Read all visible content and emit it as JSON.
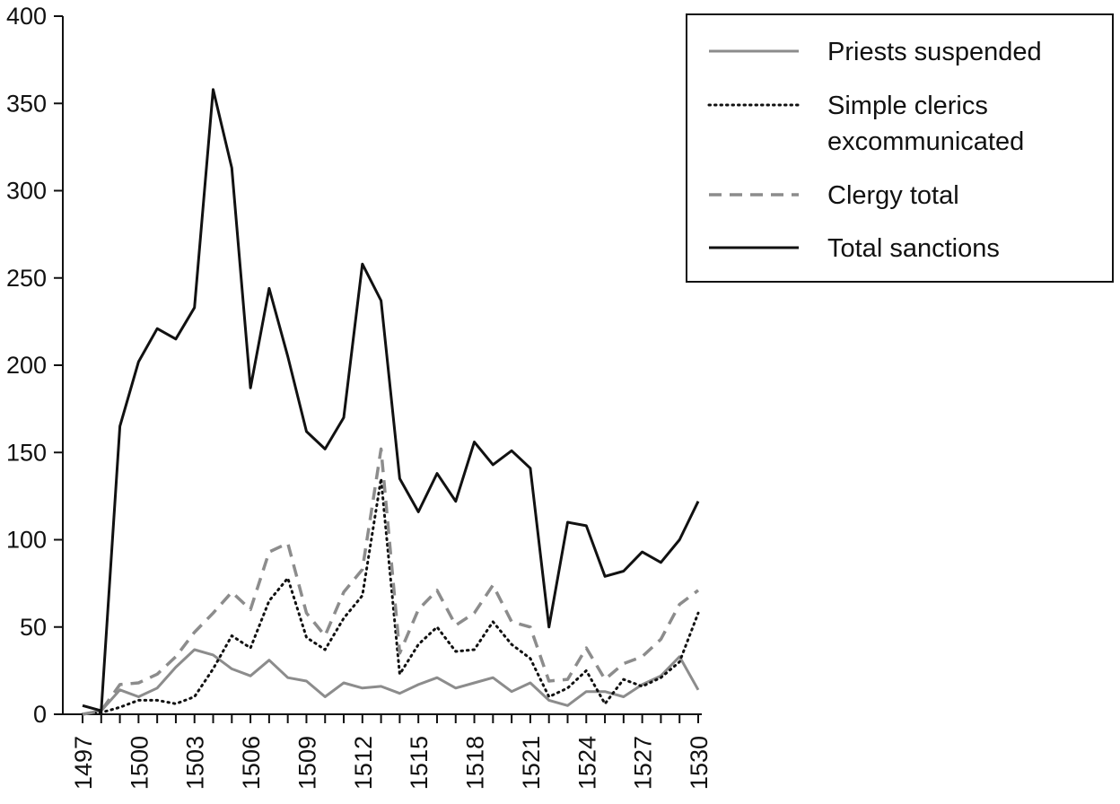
{
  "chart_data": {
    "type": "line",
    "x": [
      1497,
      1498,
      1499,
      1500,
      1501,
      1502,
      1503,
      1504,
      1505,
      1506,
      1507,
      1508,
      1509,
      1510,
      1511,
      1512,
      1513,
      1514,
      1515,
      1516,
      1517,
      1518,
      1519,
      1520,
      1521,
      1522,
      1523,
      1524,
      1525,
      1526,
      1527,
      1528,
      1529,
      1530
    ],
    "x_ticks": [
      1497,
      1500,
      1503,
      1506,
      1509,
      1512,
      1515,
      1518,
      1521,
      1524,
      1527,
      1530
    ],
    "x_tick_labels": [
      "1497",
      "1500",
      "1503",
      "1506",
      "1509",
      "1512",
      "1515",
      "1518",
      "1521",
      "1524",
      "1527",
      "1530"
    ],
    "ylim": [
      0,
      400
    ],
    "y_ticks": [
      0,
      50,
      100,
      150,
      200,
      250,
      300,
      350,
      400
    ],
    "y_tick_labels": [
      "0",
      "50",
      "100",
      "150",
      "200",
      "250",
      "300",
      "350",
      "400"
    ],
    "legend_position": "top-right",
    "grid": false,
    "series": [
      {
        "name": "Priests suspended",
        "style": "solid",
        "color": "#8c8c8c",
        "values": [
          0,
          2,
          14,
          10,
          15,
          27,
          37,
          34,
          26,
          22,
          31,
          21,
          19,
          10,
          18,
          15,
          16,
          12,
          17,
          21,
          15,
          18,
          21,
          13,
          18,
          8,
          5,
          13,
          13,
          10,
          17,
          22,
          33,
          14
        ]
      },
      {
        "name": "Simple clerics excommunicated",
        "style": "dotted",
        "color": "#111111",
        "values": [
          0,
          1,
          4,
          8,
          8,
          6,
          10,
          26,
          45,
          38,
          65,
          78,
          44,
          37,
          55,
          68,
          135,
          23,
          40,
          50,
          36,
          37,
          53,
          40,
          32,
          10,
          15,
          25,
          6,
          20,
          16,
          21,
          30,
          58
        ]
      },
      {
        "name": "Clergy total",
        "style": "dashed",
        "color": "#8c8c8c",
        "values": [
          0,
          2,
          17,
          18,
          23,
          33,
          47,
          58,
          70,
          60,
          93,
          98,
          58,
          45,
          70,
          83,
          152,
          35,
          60,
          71,
          51,
          58,
          74,
          53,
          50,
          19,
          20,
          38,
          20,
          29,
          33,
          43,
          63,
          71
        ]
      },
      {
        "name": "Total sanctions",
        "style": "solid",
        "color": "#111111",
        "values": [
          5,
          2,
          165,
          202,
          221,
          215,
          233,
          358,
          313,
          187,
          244,
          205,
          162,
          152,
          170,
          258,
          237,
          135,
          116,
          138,
          122,
          156,
          143,
          151,
          141,
          50,
          110,
          108,
          79,
          82,
          93,
          87,
          100,
          122
        ]
      }
    ]
  }
}
